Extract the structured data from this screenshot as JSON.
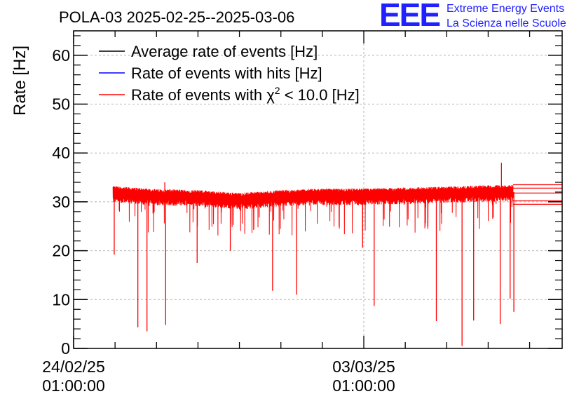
{
  "chart_data": {
    "type": "line",
    "title": "POLA-03 2025-02-25--2025-03-06",
    "ylabel": "Rate [Hz]",
    "xlabel": "",
    "ylim": [
      0,
      65
    ],
    "yticks": [
      0,
      10,
      20,
      30,
      40,
      50,
      60
    ],
    "x_unit": "days since 24/02/25 01:00:00",
    "xlim": [
      0,
      11.7
    ],
    "xticks": [
      {
        "value": 0,
        "line1": "24/02/25",
        "line2": "01:00:00"
      },
      {
        "value": 7,
        "line1": "03/03/25",
        "line2": "01:00:00"
      }
    ],
    "grid": true,
    "legend_position": "top-left",
    "series": [
      {
        "name": "Average rate of events [Hz]",
        "color": "#000000",
        "values_summary": "hidden beneath red series, ~31 Hz"
      },
      {
        "name": "Rate of events with hits [Hz]",
        "color": "#0000ff",
        "values_summary": "hidden beneath red series, ~31 Hz"
      },
      {
        "name": "Rate of events with χ2 < 10.0 [Hz]",
        "color": "#ff0000",
        "values_summary": "noisy band 28–33 Hz"
      }
    ],
    "legend": [
      {
        "name": "Average rate of events [Hz]",
        "color": "#000000"
      },
      {
        "name": "Rate of events with hits [Hz]",
        "color": "#0000ff"
      },
      {
        "prefix": "Rate of events with ",
        "symbol": "χ",
        "sup": "2",
        "suffix": " < 10.0 [Hz]",
        "color": "#ff0000"
      }
    ],
    "data_range": [
      0.95,
      10.6
    ],
    "baseline": [
      {
        "x": 0.95,
        "y": 31.8
      },
      {
        "x": 2.0,
        "y": 31.2
      },
      {
        "x": 3.0,
        "y": 31.0
      },
      {
        "x": 4.0,
        "y": 30.4
      },
      {
        "x": 5.0,
        "y": 31.0
      },
      {
        "x": 6.0,
        "y": 31.3
      },
      {
        "x": 7.0,
        "y": 31.3
      },
      {
        "x": 8.0,
        "y": 31.5
      },
      {
        "x": 9.0,
        "y": 31.7
      },
      {
        "x": 10.0,
        "y": 32.0
      },
      {
        "x": 10.6,
        "y": 32.0
      }
    ],
    "band_halfwidth": 1.3,
    "dips": [
      {
        "x": 0.98,
        "y": 19.2
      },
      {
        "x": 1.55,
        "y": 4.3
      },
      {
        "x": 1.77,
        "y": 3.5
      },
      {
        "x": 2.22,
        "y": 4.8
      },
      {
        "x": 2.98,
        "y": 17.5
      },
      {
        "x": 3.78,
        "y": 20.0
      },
      {
        "x": 4.8,
        "y": 11.8
      },
      {
        "x": 5.38,
        "y": 11.0
      },
      {
        "x": 6.97,
        "y": 20.6
      },
      {
        "x": 7.25,
        "y": 8.7
      },
      {
        "x": 8.75,
        "y": 5.6
      },
      {
        "x": 9.37,
        "y": 0.5
      },
      {
        "x": 9.65,
        "y": 5.7
      },
      {
        "x": 10.29,
        "y": 5.0
      },
      {
        "x": 10.53,
        "y": 10.2
      },
      {
        "x": 10.62,
        "y": 7.5
      }
    ],
    "spikes": [
      {
        "x": 10.32,
        "y": 38.0
      },
      {
        "x": 2.2,
        "y": 34.0
      }
    ],
    "tail_lines": [
      {
        "x0": 10.6,
        "y": 33.5
      },
      {
        "x0": 10.6,
        "y": 32.8
      },
      {
        "x0": 10.6,
        "y": 31.8
      },
      {
        "x0": 10.6,
        "y": 30.2
      },
      {
        "x0": 10.6,
        "y": 29.5
      }
    ]
  },
  "logo": {
    "mark": "EEE",
    "line1": "Extreme Energy Events",
    "line2": "La Scienza nelle Scuole",
    "color": "#2121ff"
  }
}
